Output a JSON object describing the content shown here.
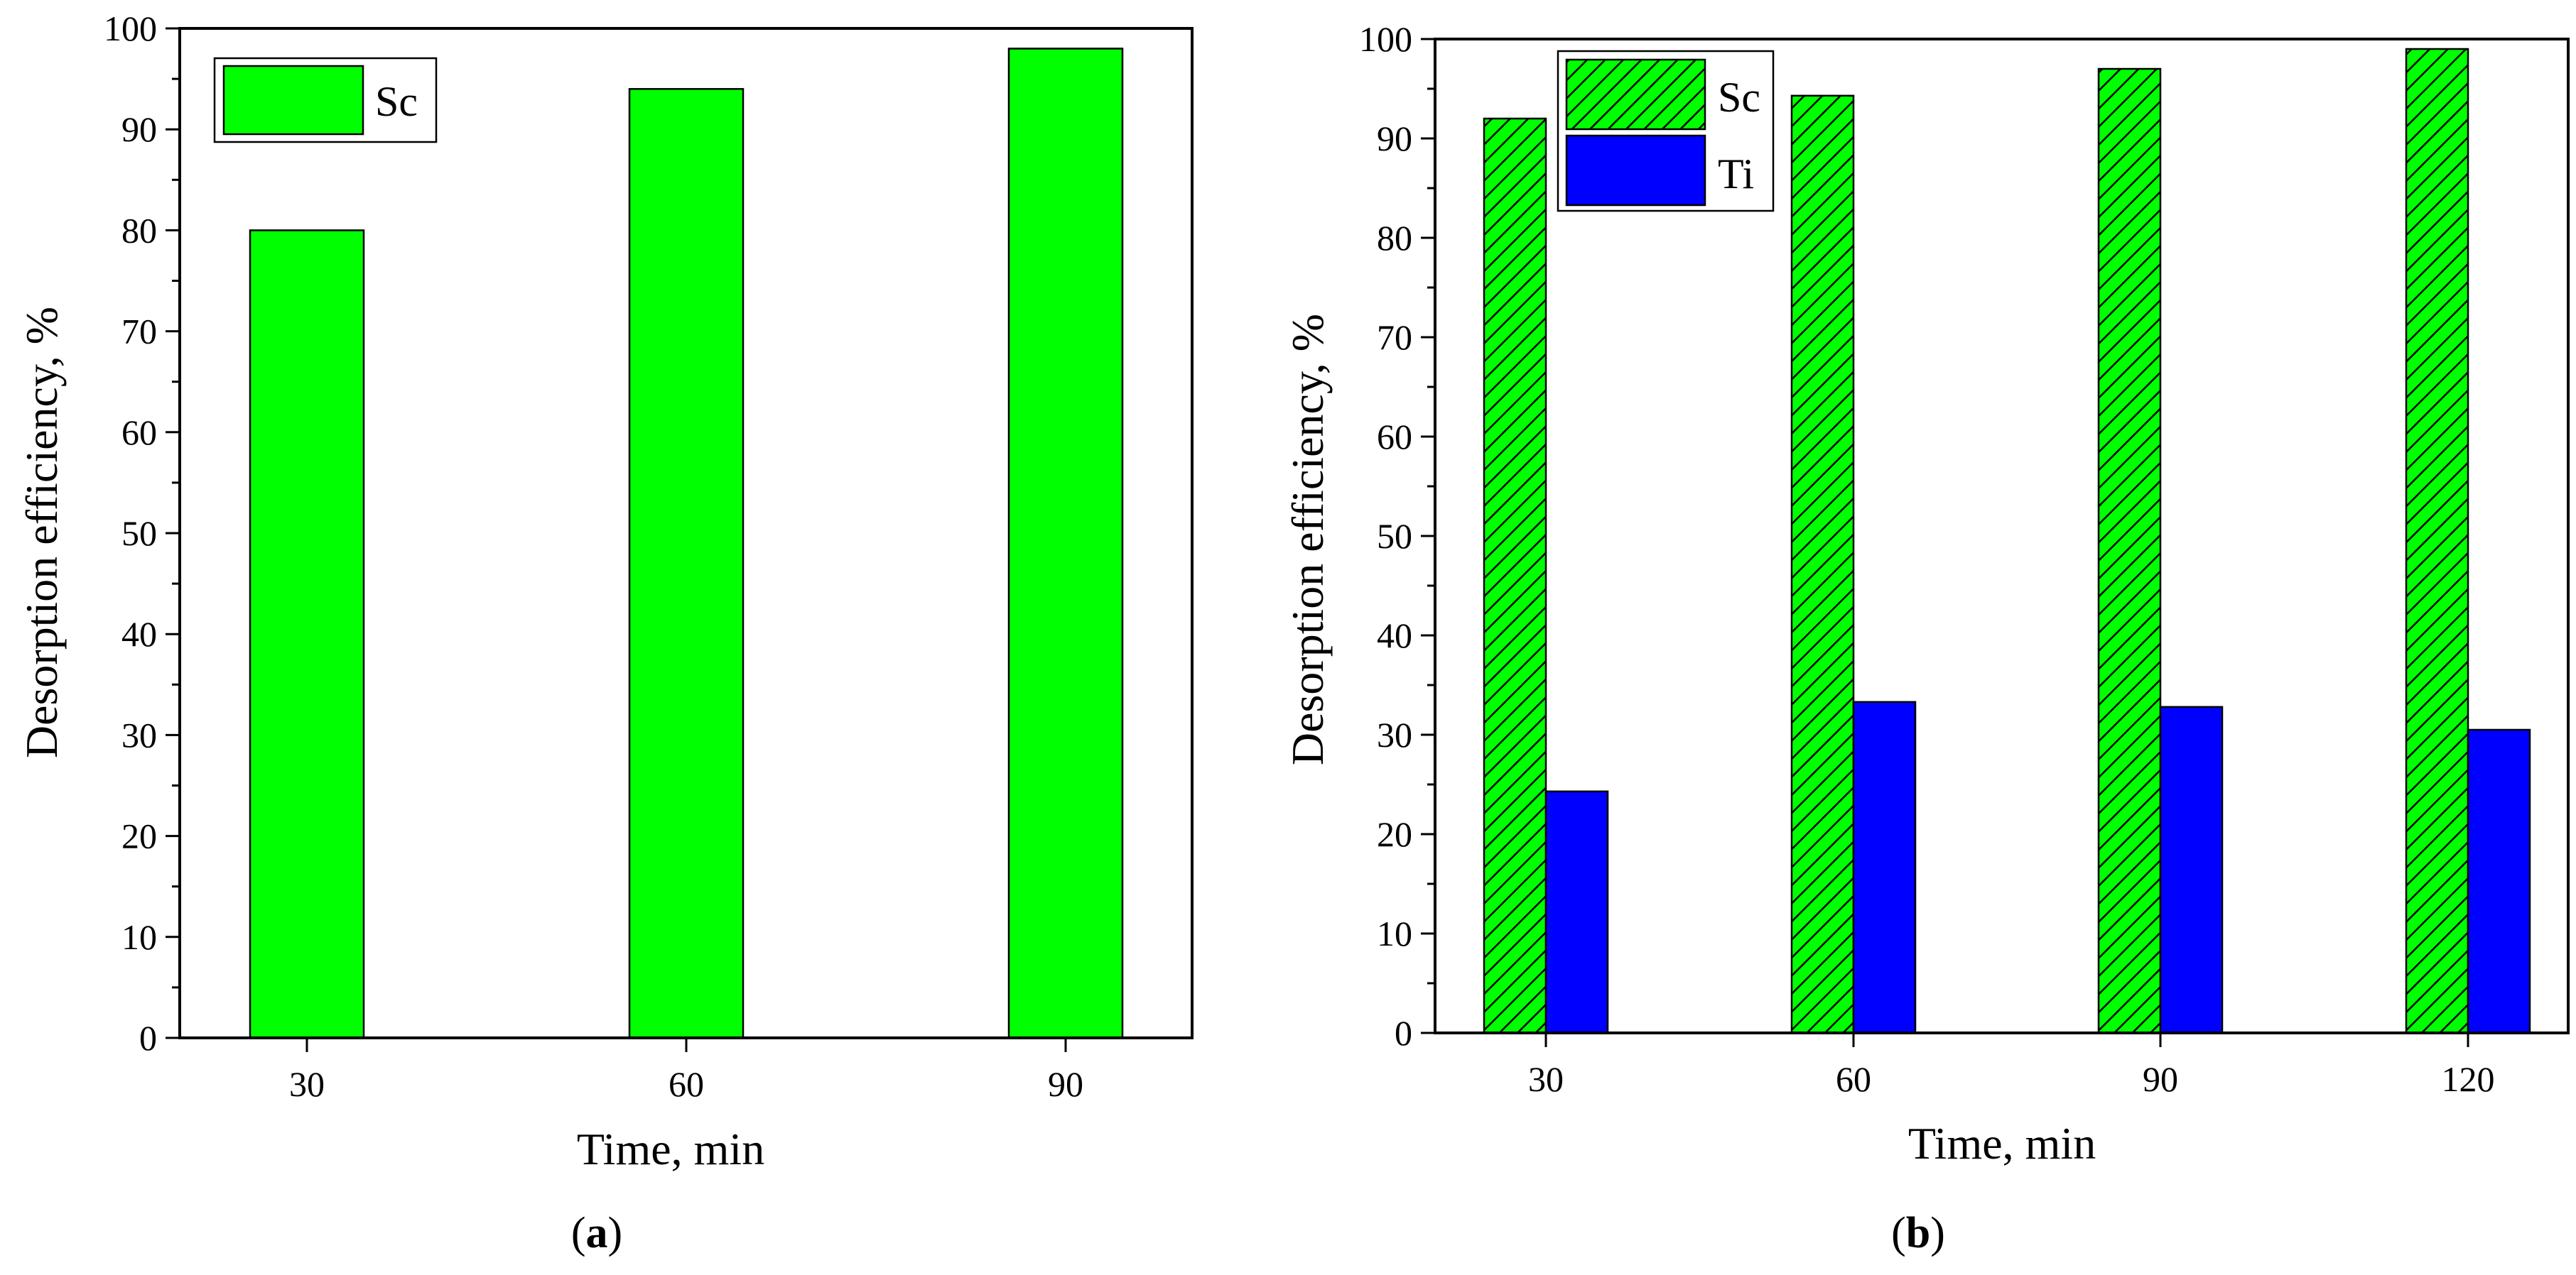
{
  "colors": {
    "sc_fill": "#00ff00",
    "ti_fill": "#0000ff",
    "hatch": "#000000",
    "background": "#ffffff"
  },
  "chart_data": [
    {
      "type": "bar",
      "panel": "a",
      "caption_open": "(",
      "caption_letter": "a",
      "caption_close": ")",
      "xlabel": "Time, min",
      "ylabel": "Desorption efficiency, %",
      "ylim": [
        0,
        100
      ],
      "yticks": [
        0,
        10,
        20,
        30,
        40,
        50,
        60,
        70,
        80,
        90,
        100
      ],
      "categories": [
        "30",
        "60",
        "90"
      ],
      "legend_position": "top-left",
      "series": [
        {
          "name": "Sc",
          "values": [
            80,
            94,
            98
          ],
          "pattern": "solid",
          "color": "#00ff00"
        }
      ]
    },
    {
      "type": "bar",
      "panel": "b",
      "caption_open": "(",
      "caption_letter": "b",
      "caption_close": ")",
      "xlabel": "Time, min",
      "ylabel": "Desorption efficiency, %",
      "ylim": [
        0,
        100
      ],
      "yticks": [
        0,
        10,
        20,
        30,
        40,
        50,
        60,
        70,
        80,
        90,
        100
      ],
      "categories": [
        "30",
        "60",
        "90",
        "120"
      ],
      "legend_position": "top-left",
      "series": [
        {
          "name": "Sc",
          "values": [
            92,
            94.3,
            97,
            99
          ],
          "pattern": "hatched",
          "color": "#00ff00"
        },
        {
          "name": "Ti",
          "values": [
            24.3,
            33.3,
            32.8,
            30.5
          ],
          "pattern": "solid",
          "color": "#0000ff"
        }
      ]
    }
  ]
}
